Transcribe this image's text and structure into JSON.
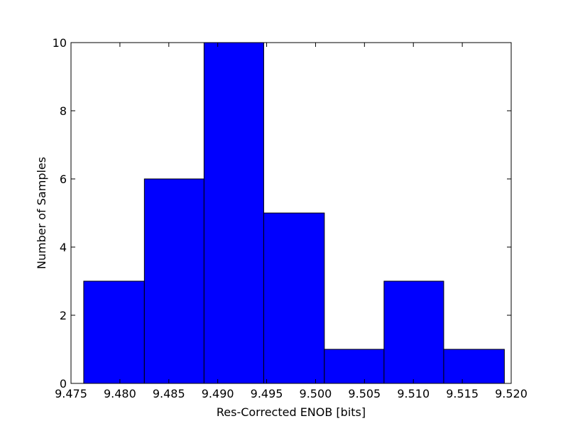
{
  "chart_data": {
    "type": "histogram",
    "x_label": "Res-Corrected ENOB [bits]",
    "y_label": "Number of Samples",
    "bins": [
      9.4763,
      9.4825,
      9.4886,
      9.4947,
      9.5009,
      9.507,
      9.5131,
      9.5193
    ],
    "counts": [
      3,
      6,
      10,
      5,
      1,
      3,
      1
    ],
    "color": "#0000ff",
    "xlim": [
      9.475,
      9.52
    ],
    "xticks": [
      9.475,
      {
        "value": 9.48,
        "label": "9.480"
      },
      9.485,
      {
        "value": 9.49,
        "label": "9.490"
      },
      9.495,
      {
        "value": 9.5,
        "label": "9.500"
      },
      9.505,
      {
        "value": 9.51,
        "label": "9.510"
      },
      9.515,
      {
        "value": 9.52,
        "label": "9.520"
      }
    ],
    "ylim": [
      0,
      10
    ],
    "yticks": [
      0,
      2,
      4,
      6,
      8,
      10
    ],
    "grid": false
  }
}
